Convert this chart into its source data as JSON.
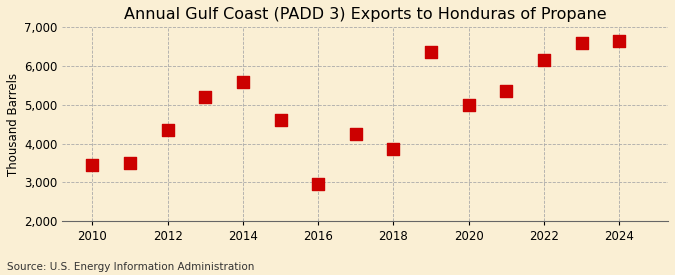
{
  "title": "Annual Gulf Coast (PADD 3) Exports to Honduras of Propane",
  "ylabel": "Thousand Barrels",
  "source": "Source: U.S. Energy Information Administration",
  "years": [
    2010,
    2011,
    2012,
    2013,
    2014,
    2015,
    2016,
    2017,
    2018,
    2019,
    2020,
    2021,
    2022,
    2023,
    2024
  ],
  "values": [
    3450,
    3500,
    4350,
    5200,
    5600,
    4600,
    2950,
    4250,
    3850,
    6350,
    5000,
    5350,
    6150,
    6600,
    6650
  ],
  "ylim": [
    2000,
    7000
  ],
  "yticks": [
    2000,
    3000,
    4000,
    5000,
    6000,
    7000
  ],
  "xticks": [
    2010,
    2012,
    2014,
    2016,
    2018,
    2020,
    2022,
    2024
  ],
  "xlim": [
    2009.2,
    2025.3
  ],
  "marker_color": "#cc0000",
  "marker": "s",
  "marker_size": 4,
  "bg_color": "#faefd4",
  "grid_color": "#aaaaaa",
  "title_fontsize": 11.5,
  "label_fontsize": 8.5,
  "tick_fontsize": 8.5,
  "source_fontsize": 7.5
}
